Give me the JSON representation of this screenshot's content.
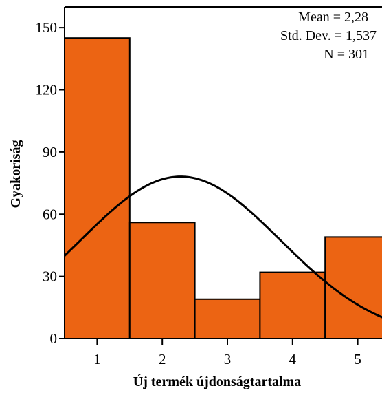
{
  "colors": {
    "bar_fill": "#ec6413",
    "bar_stroke": "#000000",
    "curve": "#000000",
    "axis": "#000000"
  },
  "chart_data": {
    "type": "bar",
    "subtype": "histogram-with-normal-curve",
    "categories": [
      "1",
      "2",
      "3",
      "4",
      "5"
    ],
    "values": [
      145,
      56,
      19,
      32,
      49
    ],
    "xlabel": "Új termék újdonságtartalma",
    "ylabel": "Gyakoriság",
    "ylim": [
      0,
      160
    ],
    "yticks": [
      "0",
      "30",
      "60",
      "90",
      "120",
      "150"
    ],
    "xlim": [
      0.5,
      5.5
    ],
    "grid": false,
    "normal_curve": {
      "mean": 2.28,
      "sd": 1.537,
      "n": 301,
      "bin_width": 1
    },
    "stats": [
      "Mean = 2,28",
      "Std. Dev. = 1,537",
      "N = 301"
    ]
  }
}
